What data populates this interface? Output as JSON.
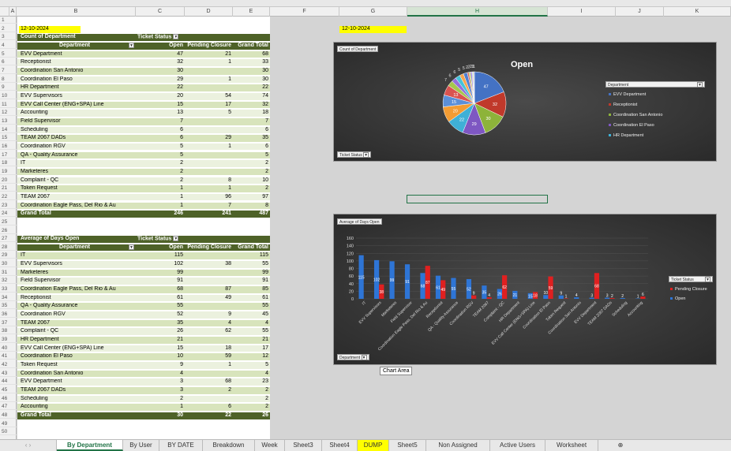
{
  "columns": [
    "A",
    "B",
    "C",
    "D",
    "E",
    "F",
    "G",
    "H",
    "I",
    "J",
    "K"
  ],
  "date1": "12-10-2024",
  "date2": "12-10-2024",
  "pivot1": {
    "title": "Count of Department",
    "filter_label": "Ticket Status",
    "col1": "Department",
    "col2": "Open",
    "col3": "Pending Closure",
    "col4": "Grand Total",
    "rows": [
      [
        "EVV Department",
        "47",
        "21",
        "68"
      ],
      [
        "Receptionist",
        "32",
        "1",
        "33"
      ],
      [
        "Coordination San Antonio",
        "30",
        "",
        "30"
      ],
      [
        "Coordination El Paso",
        "29",
        "1",
        "30"
      ],
      [
        "HR Department",
        "22",
        "",
        "22"
      ],
      [
        "EVV Supervisors",
        "20",
        "54",
        "74"
      ],
      [
        "EVV Call Center (ENG+SPA) Line",
        "15",
        "17",
        "32"
      ],
      [
        "Accounting",
        "13",
        "5",
        "18"
      ],
      [
        "Field Supervisor",
        "7",
        "",
        "7"
      ],
      [
        "Scheduling",
        "6",
        "",
        "6"
      ],
      [
        "TEAM 2067 DADs",
        "6",
        "29",
        "35"
      ],
      [
        "Coordination RGV",
        "5",
        "1",
        "6"
      ],
      [
        "QA - Quality Assurance",
        "5",
        "",
        "5"
      ],
      [
        "IT",
        "2",
        "",
        "2"
      ],
      [
        "Marketeres",
        "2",
        "",
        "2"
      ],
      [
        "Complaint - QC",
        "2",
        "8",
        "10"
      ],
      [
        "Token Request",
        "1",
        "1",
        "2"
      ],
      [
        "TEAM 2067",
        "1",
        "96",
        "97"
      ],
      [
        "Coordination Eagle Pass, Del Rio & Au",
        "1",
        "7",
        "8"
      ]
    ],
    "total": [
      "Grand Total",
      "246",
      "241",
      "487"
    ]
  },
  "pivot2": {
    "title": "Average of Days Open",
    "filter_label": "Ticket Status",
    "col1": "Department",
    "col2": "Open",
    "col3": "Pending Closure",
    "col4": "Grand Total",
    "rows": [
      [
        "IT",
        "115",
        "",
        "115"
      ],
      [
        "EVV Supervisors",
        "102",
        "38",
        "55"
      ],
      [
        "Marketeres",
        "99",
        "",
        "99"
      ],
      [
        "Field Supervisor",
        "91",
        "",
        "91"
      ],
      [
        "Coordination Eagle Pass, Del Rio & Au",
        "68",
        "87",
        "85"
      ],
      [
        "Receptionist",
        "61",
        "49",
        "61"
      ],
      [
        "QA - Quality Assurance",
        "55",
        "",
        "55"
      ],
      [
        "Coordination RGV",
        "52",
        "9",
        "45"
      ],
      [
        "TEAM 2067",
        "35",
        "4",
        "4"
      ],
      [
        "Complaint - QC",
        "26",
        "62",
        "55"
      ],
      [
        "HR Department",
        "21",
        "",
        "21"
      ],
      [
        "EVV Call Center (ENG+SPA) Line",
        "15",
        "18",
        "17"
      ],
      [
        "Coordination El Paso",
        "10",
        "59",
        "12"
      ],
      [
        "Token Request",
        "9",
        "1",
        "5"
      ],
      [
        "Coordination San Antonio",
        "4",
        "",
        "4"
      ],
      [
        "EVV Department",
        "3",
        "68",
        "23"
      ],
      [
        "TEAM 2067 DADs",
        "3",
        "2",
        "2"
      ],
      [
        "Scheduling",
        "2",
        "",
        "2"
      ],
      [
        "Accounting",
        "1",
        "6",
        "2"
      ]
    ],
    "total": [
      "Grand Total",
      "30",
      "22",
      "26"
    ]
  },
  "chart_data": [
    {
      "type": "pie",
      "title": "Open",
      "field_button": "Count of Department",
      "filter_button": "Ticket Status",
      "legend_title": "Department",
      "legend_placement": "right",
      "legend": [
        "EVV Department",
        "Receptionist",
        "Coordination San Antonio",
        "Coordination El Paso",
        "HR Department"
      ],
      "categories": [
        "EVV Department",
        "Receptionist",
        "Coordination San Antonio",
        "Coordination El Paso",
        "HR Department",
        "EVV Supervisors",
        "EVV Call Center (ENG+SPA) Line",
        "Accounting",
        "Field Supervisor",
        "Scheduling",
        "TEAM 2067 DADs",
        "Coordination RGV",
        "QA - Quality Assurance",
        "IT",
        "Marketeres",
        "Complaint - QC",
        "Token Request",
        "TEAM 2067",
        "Coordination Eagle Pass, Del Rio & Au"
      ],
      "values": [
        47,
        32,
        30,
        29,
        22,
        20,
        15,
        13,
        7,
        6,
        6,
        5,
        5,
        2,
        2,
        2,
        1,
        1,
        1
      ],
      "colors": [
        "#4472c4",
        "#c0392b",
        "#8db33a",
        "#7e57c2",
        "#3fb0d6",
        "#f39c33",
        "#5b8fd8",
        "#d9534f",
        "#a5c74b",
        "#9370db",
        "#45c2d9",
        "#f6a54f",
        "#4f7fd0",
        "#d35f5f",
        "#b1cf5f",
        "#a07fe0",
        "#5bc8e0",
        "#f8b46a",
        "#6d8fd5"
      ]
    },
    {
      "type": "bar",
      "field_button": "Average of Days Open",
      "filter_button": "Department",
      "legend_title": "Ticket Status",
      "legend_placement": "right",
      "categories": [
        "IT",
        "EVV Supervisors",
        "Marketeres",
        "Field Supervisor",
        "Coordination Eagle Pass, Del Rio & Au",
        "Receptionist",
        "QA - Quality Assurance",
        "Coordination RGV",
        "TEAM 2067",
        "Complaint - QC",
        "HR Department",
        "EVV Call Center (ENG+SPA) Line",
        "Coordination El Paso",
        "Token Request",
        "Coordination San Antonio",
        "EVV Department",
        "TEAM 2067 DADs",
        "Scheduling",
        "Accounting"
      ],
      "series": [
        {
          "name": "Open",
          "color": "#2e75d6",
          "values": [
            115,
            102,
            99,
            91,
            68,
            61,
            55,
            52,
            35,
            26,
            21,
            15,
            10,
            9,
            4,
            3,
            3,
            2,
            1
          ]
        },
        {
          "name": "Pending Closure",
          "color": "#e02020",
          "values": [
            null,
            38,
            null,
            null,
            87,
            49,
            null,
            9,
            4,
            62,
            null,
            18,
            59,
            1,
            null,
            68,
            2,
            null,
            6
          ]
        }
      ],
      "yticks": [
        0,
        20,
        40,
        60,
        80,
        100,
        120,
        140,
        160
      ],
      "ylim": [
        0,
        160
      ]
    }
  ],
  "tooltip": "Chart Area",
  "tabs": [
    "By Department",
    "By User",
    "BY DATE",
    "Breakdown",
    "Week",
    "Sheet3",
    "Sheet4",
    "DUMP",
    "Sheet5",
    "Non Assigned",
    "Active Users",
    "Worksheet"
  ],
  "add_sheet": "⊕"
}
